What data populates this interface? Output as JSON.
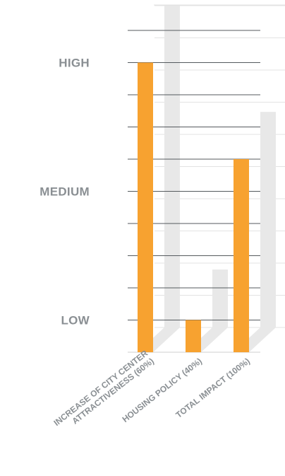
{
  "chart_data": {
    "type": "bar",
    "categories": [
      [
        "INCREASE OF CITY CENTER",
        "ATTRACTIVENESS (60%)"
      ],
      [
        "HOUSING POLICY (40%)"
      ],
      [
        "TOTAL IMPACT (100%)"
      ]
    ],
    "values": [
      9,
      1,
      6
    ],
    "shadow_values": [
      10,
      1.8,
      6.7
    ],
    "ylim": [
      0,
      10
    ],
    "levels": [
      {
        "label": "HIGH",
        "value": 9
      },
      {
        "label": "MEDIUM",
        "value": 5
      },
      {
        "label": "LOW",
        "value": 1
      }
    ],
    "colors": {
      "bar": "#f7a230",
      "shadow": "#e8e8e8",
      "grid": "#555a5e",
      "grid_light": "#e3e3e3",
      "label": "#8a8f93"
    }
  }
}
